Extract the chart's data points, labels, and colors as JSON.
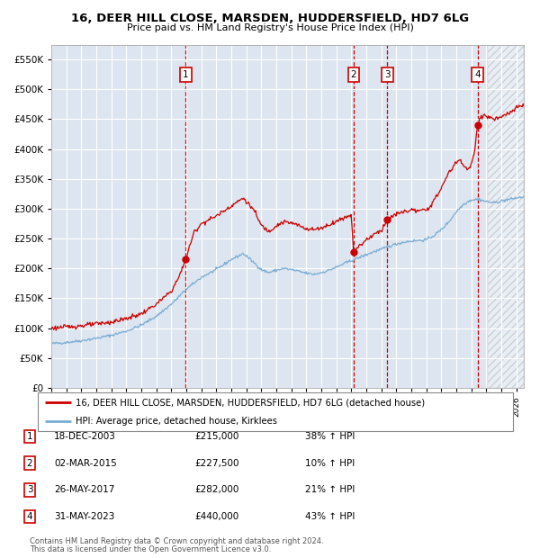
{
  "title": "16, DEER HILL CLOSE, MARSDEN, HUDDERSFIELD, HD7 6LG",
  "subtitle": "Price paid vs. HM Land Registry's House Price Index (HPI)",
  "red_label": "16, DEER HILL CLOSE, MARSDEN, HUDDERSFIELD, HD7 6LG (detached house)",
  "blue_label": "HPI: Average price, detached house, Kirklees",
  "footer1": "Contains HM Land Registry data © Crown copyright and database right 2024.",
  "footer2": "This data is licensed under the Open Government Licence v3.0.",
  "transactions": [
    {
      "num": 1,
      "date": "18-DEC-2003",
      "price": 215000,
      "hpi_pct": "38%",
      "direction": "↑"
    },
    {
      "num": 2,
      "date": "02-MAR-2015",
      "price": 227500,
      "hpi_pct": "10%",
      "direction": "↑"
    },
    {
      "num": 3,
      "date": "26-MAY-2017",
      "price": 282000,
      "hpi_pct": "21%",
      "direction": "↑"
    },
    {
      "num": 4,
      "date": "31-MAY-2023",
      "price": 440000,
      "hpi_pct": "43%",
      "direction": "↑"
    }
  ],
  "transaction_dates_decimal": [
    2003.96,
    2015.16,
    2017.4,
    2023.41
  ],
  "transaction_prices": [
    215000,
    227500,
    282000,
    440000
  ],
  "xlim": [
    1995.0,
    2026.5
  ],
  "ylim": [
    0,
    575000
  ],
  "yticks": [
    0,
    50000,
    100000,
    150000,
    200000,
    250000,
    300000,
    350000,
    400000,
    450000,
    500000,
    550000
  ],
  "bg_color": "#dde5f0",
  "grid_color": "#ffffff",
  "red_color": "#cc0000",
  "blue_color": "#7aadd4",
  "vline_color": "#cc0000",
  "marker_color": "#cc0000",
  "box_color": "#cc0000",
  "hatch_start": 2024.08
}
